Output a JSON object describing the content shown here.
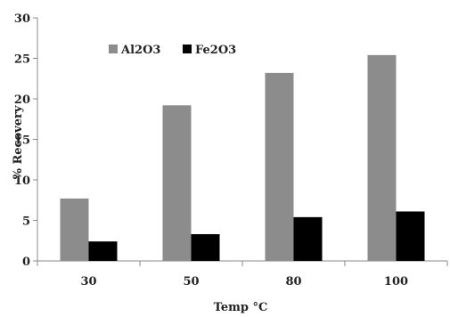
{
  "chart_data": {
    "type": "bar",
    "title": "",
    "xlabel": "Temp °C",
    "ylabel": "% Recovery",
    "categories": [
      "30",
      "50",
      "80",
      "100"
    ],
    "ylim": [
      0,
      30
    ],
    "yticks": [
      "0",
      "5",
      "10",
      "15",
      "20",
      "25",
      "30"
    ],
    "grid": false,
    "legend_position": "top-left",
    "series": [
      {
        "name": "Al2O3",
        "color": "#8c8c8c",
        "values": [
          7.7,
          19.2,
          23.2,
          25.4
        ]
      },
      {
        "name": "Fe2O3",
        "color": "#000000",
        "values": [
          2.4,
          3.3,
          5.4,
          6.1
        ]
      }
    ]
  }
}
